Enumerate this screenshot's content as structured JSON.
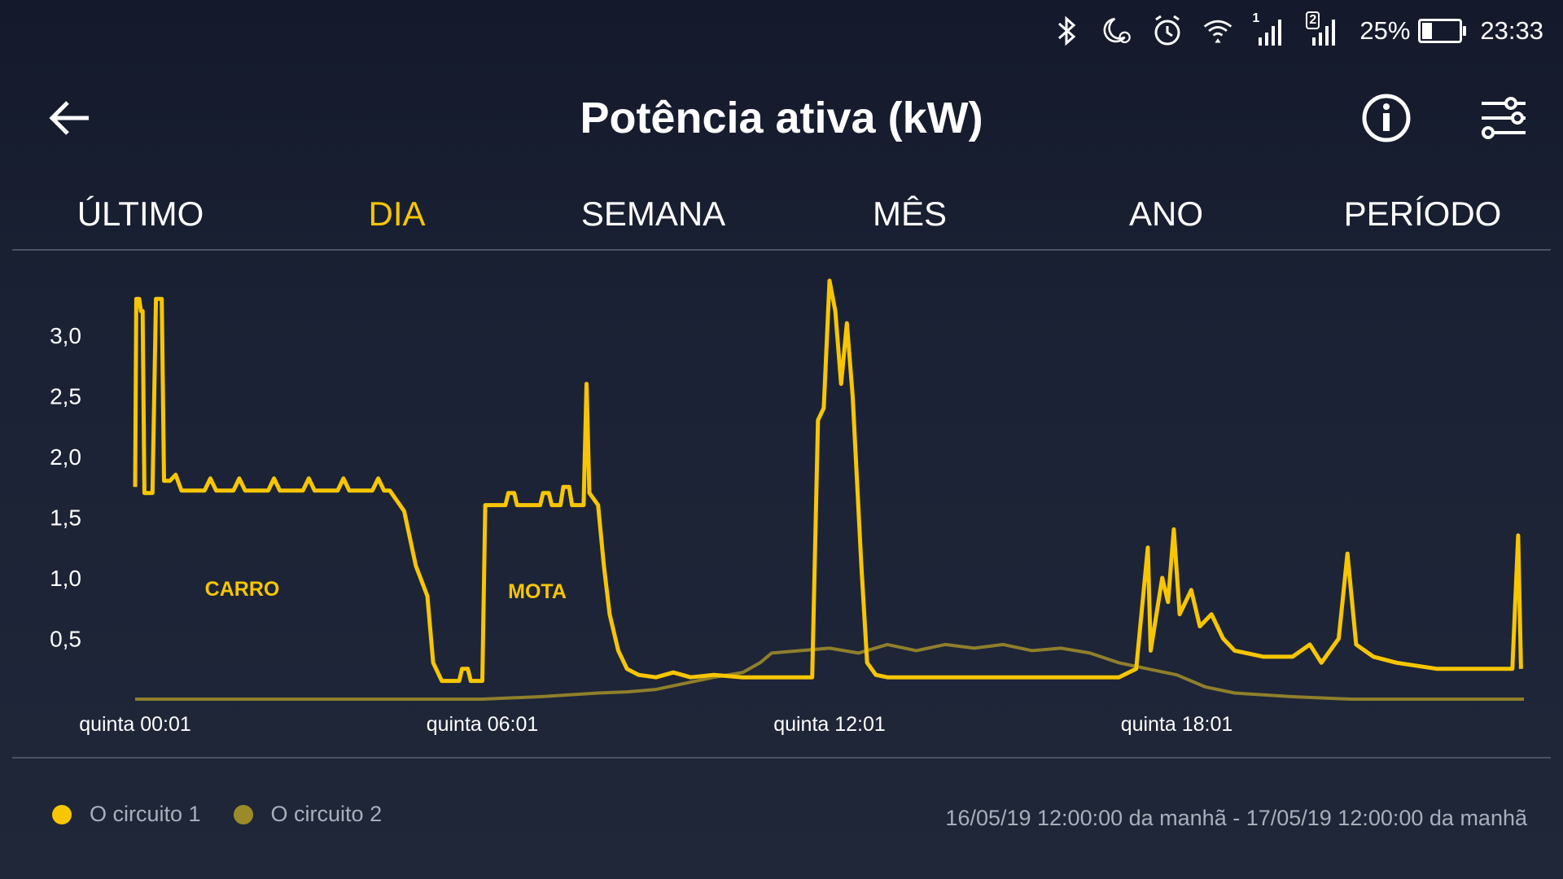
{
  "status_bar": {
    "sim1": "1",
    "sim2": "2",
    "battery": "25%",
    "battery_level": 0.25,
    "time": "23:33",
    "icons": [
      "bluetooth-icon",
      "moon-alarm-icon",
      "alarm-clock-icon",
      "wifi-icon",
      "signal-icon",
      "signal-icon"
    ]
  },
  "app_bar": {
    "title": "Potência ativa (kW)",
    "icons": [
      "back-arrow-icon",
      "info-icon",
      "sliders-icon"
    ]
  },
  "tabs": [
    {
      "label": "ÚLTIMO",
      "active": false
    },
    {
      "label": "DIA",
      "active": true
    },
    {
      "label": "SEMANA",
      "active": false
    },
    {
      "label": "MÊS",
      "active": false
    },
    {
      "label": "ANO",
      "active": false
    },
    {
      "label": "PERÍODO",
      "active": false
    }
  ],
  "colors": {
    "accent": "#f7c600",
    "series1": "#f7c600",
    "series2": "#9c8a2a",
    "muted_text": "#a9afbb",
    "divider": "#4a5264"
  },
  "chart_data": {
    "type": "line",
    "xlabel": "",
    "ylabel": "",
    "x_ticks": [
      "quinta 00:01",
      "quinta 06:01",
      "quinta 12:01",
      "quinta 18:01"
    ],
    "y_ticks": [
      "3,0",
      "2,5",
      "2,0",
      "1,5",
      "1,0",
      "0,5"
    ],
    "ylim": [
      0,
      3.5
    ],
    "xlim_hours": [
      0,
      24
    ],
    "annotations": [
      {
        "text": "CARRO",
        "x": 1.85,
        "y": 0.92
      },
      {
        "text": "MOTA",
        "x": 6.95,
        "y": 0.9
      }
    ],
    "series": [
      {
        "name": "O circuito 1",
        "points": [
          [
            0.0,
            1.75
          ],
          [
            0.02,
            3.3
          ],
          [
            0.07,
            3.3
          ],
          [
            0.1,
            3.2
          ],
          [
            0.13,
            3.2
          ],
          [
            0.16,
            1.7
          ],
          [
            0.3,
            1.7
          ],
          [
            0.36,
            3.3
          ],
          [
            0.46,
            3.3
          ],
          [
            0.5,
            1.8
          ],
          [
            0.6,
            1.8
          ],
          [
            0.7,
            1.85
          ],
          [
            0.8,
            1.72
          ],
          [
            1.2,
            1.72
          ],
          [
            1.3,
            1.82
          ],
          [
            1.4,
            1.72
          ],
          [
            1.7,
            1.72
          ],
          [
            1.8,
            1.82
          ],
          [
            1.9,
            1.72
          ],
          [
            2.3,
            1.72
          ],
          [
            2.4,
            1.82
          ],
          [
            2.5,
            1.72
          ],
          [
            2.9,
            1.72
          ],
          [
            3.0,
            1.82
          ],
          [
            3.1,
            1.72
          ],
          [
            3.5,
            1.72
          ],
          [
            3.6,
            1.82
          ],
          [
            3.7,
            1.72
          ],
          [
            4.1,
            1.72
          ],
          [
            4.2,
            1.82
          ],
          [
            4.3,
            1.72
          ],
          [
            4.3,
            1.72
          ],
          [
            4.4,
            1.72
          ],
          [
            4.65,
            1.55
          ],
          [
            4.85,
            1.1
          ],
          [
            5.05,
            0.85
          ],
          [
            5.15,
            0.3
          ],
          [
            5.3,
            0.15
          ],
          [
            5.6,
            0.15
          ],
          [
            5.65,
            0.25
          ],
          [
            5.75,
            0.25
          ],
          [
            5.8,
            0.15
          ],
          [
            6.0,
            0.15
          ],
          [
            6.05,
            1.6
          ],
          [
            6.4,
            1.6
          ],
          [
            6.45,
            1.7
          ],
          [
            6.55,
            1.7
          ],
          [
            6.6,
            1.6
          ],
          [
            7.0,
            1.6
          ],
          [
            7.05,
            1.7
          ],
          [
            7.15,
            1.7
          ],
          [
            7.2,
            1.6
          ],
          [
            7.35,
            1.6
          ],
          [
            7.4,
            1.75
          ],
          [
            7.5,
            1.75
          ],
          [
            7.55,
            1.6
          ],
          [
            7.75,
            1.6
          ],
          [
            7.8,
            2.6
          ],
          [
            7.85,
            1.7
          ],
          [
            8.0,
            1.6
          ],
          [
            8.1,
            1.1
          ],
          [
            8.2,
            0.7
          ],
          [
            8.35,
            0.4
          ],
          [
            8.5,
            0.25
          ],
          [
            8.7,
            0.2
          ],
          [
            9.0,
            0.18
          ],
          [
            9.3,
            0.22
          ],
          [
            9.6,
            0.18
          ],
          [
            10.0,
            0.2
          ],
          [
            10.5,
            0.18
          ],
          [
            11.0,
            0.18
          ],
          [
            11.5,
            0.18
          ],
          [
            11.7,
            0.18
          ],
          [
            11.8,
            2.3
          ],
          [
            11.9,
            2.4
          ],
          [
            12.0,
            3.45
          ],
          [
            12.1,
            3.2
          ],
          [
            12.2,
            2.6
          ],
          [
            12.3,
            3.1
          ],
          [
            12.4,
            2.5
          ],
          [
            12.55,
            1.1
          ],
          [
            12.65,
            0.3
          ],
          [
            12.8,
            0.2
          ],
          [
            13.0,
            0.18
          ],
          [
            14.0,
            0.18
          ],
          [
            15.0,
            0.18
          ],
          [
            16.0,
            0.18
          ],
          [
            17.0,
            0.18
          ],
          [
            17.3,
            0.25
          ],
          [
            17.5,
            1.25
          ],
          [
            17.55,
            0.4
          ],
          [
            17.65,
            0.7
          ],
          [
            17.75,
            1.0
          ],
          [
            17.85,
            0.8
          ],
          [
            17.95,
            1.4
          ],
          [
            18.05,
            0.7
          ],
          [
            18.15,
            0.8
          ],
          [
            18.25,
            0.9
          ],
          [
            18.4,
            0.6
          ],
          [
            18.6,
            0.7
          ],
          [
            18.8,
            0.5
          ],
          [
            19.0,
            0.4
          ],
          [
            19.5,
            0.35
          ],
          [
            20.0,
            0.35
          ],
          [
            20.3,
            0.45
          ],
          [
            20.5,
            0.3
          ],
          [
            20.8,
            0.5
          ],
          [
            20.95,
            1.2
          ],
          [
            21.1,
            0.45
          ],
          [
            21.4,
            0.35
          ],
          [
            21.8,
            0.3
          ],
          [
            22.5,
            0.25
          ],
          [
            23.0,
            0.25
          ],
          [
            23.5,
            0.25
          ],
          [
            23.8,
            0.25
          ],
          [
            23.9,
            1.35
          ],
          [
            23.95,
            0.25
          ]
        ]
      },
      {
        "name": "O circuito 2",
        "points": [
          [
            0.0,
            0.0
          ],
          [
            6.0,
            0.0
          ],
          [
            7.0,
            0.02
          ],
          [
            8.0,
            0.05
          ],
          [
            8.5,
            0.06
          ],
          [
            9.0,
            0.08
          ],
          [
            10.0,
            0.18
          ],
          [
            10.5,
            0.22
          ],
          [
            10.8,
            0.3
          ],
          [
            11.0,
            0.38
          ],
          [
            11.5,
            0.4
          ],
          [
            12.0,
            0.42
          ],
          [
            12.5,
            0.38
          ],
          [
            13.0,
            0.45
          ],
          [
            13.5,
            0.4
          ],
          [
            14.0,
            0.45
          ],
          [
            14.5,
            0.42
          ],
          [
            15.0,
            0.45
          ],
          [
            15.5,
            0.4
          ],
          [
            16.0,
            0.42
          ],
          [
            16.5,
            0.38
          ],
          [
            17.0,
            0.3
          ],
          [
            17.5,
            0.25
          ],
          [
            18.0,
            0.2
          ],
          [
            18.5,
            0.1
          ],
          [
            19.0,
            0.05
          ],
          [
            20.0,
            0.02
          ],
          [
            21.0,
            0.0
          ],
          [
            24.0,
            0.0
          ]
        ]
      }
    ]
  },
  "legend": {
    "items": [
      {
        "label": "O circuito 1",
        "color": "#f7c600"
      },
      {
        "label": "O circuito 2",
        "color": "#9c8a2a"
      }
    ],
    "range_text": "16/05/19 12:00:00 da manhã - 17/05/19 12:00:00 da manhã"
  }
}
